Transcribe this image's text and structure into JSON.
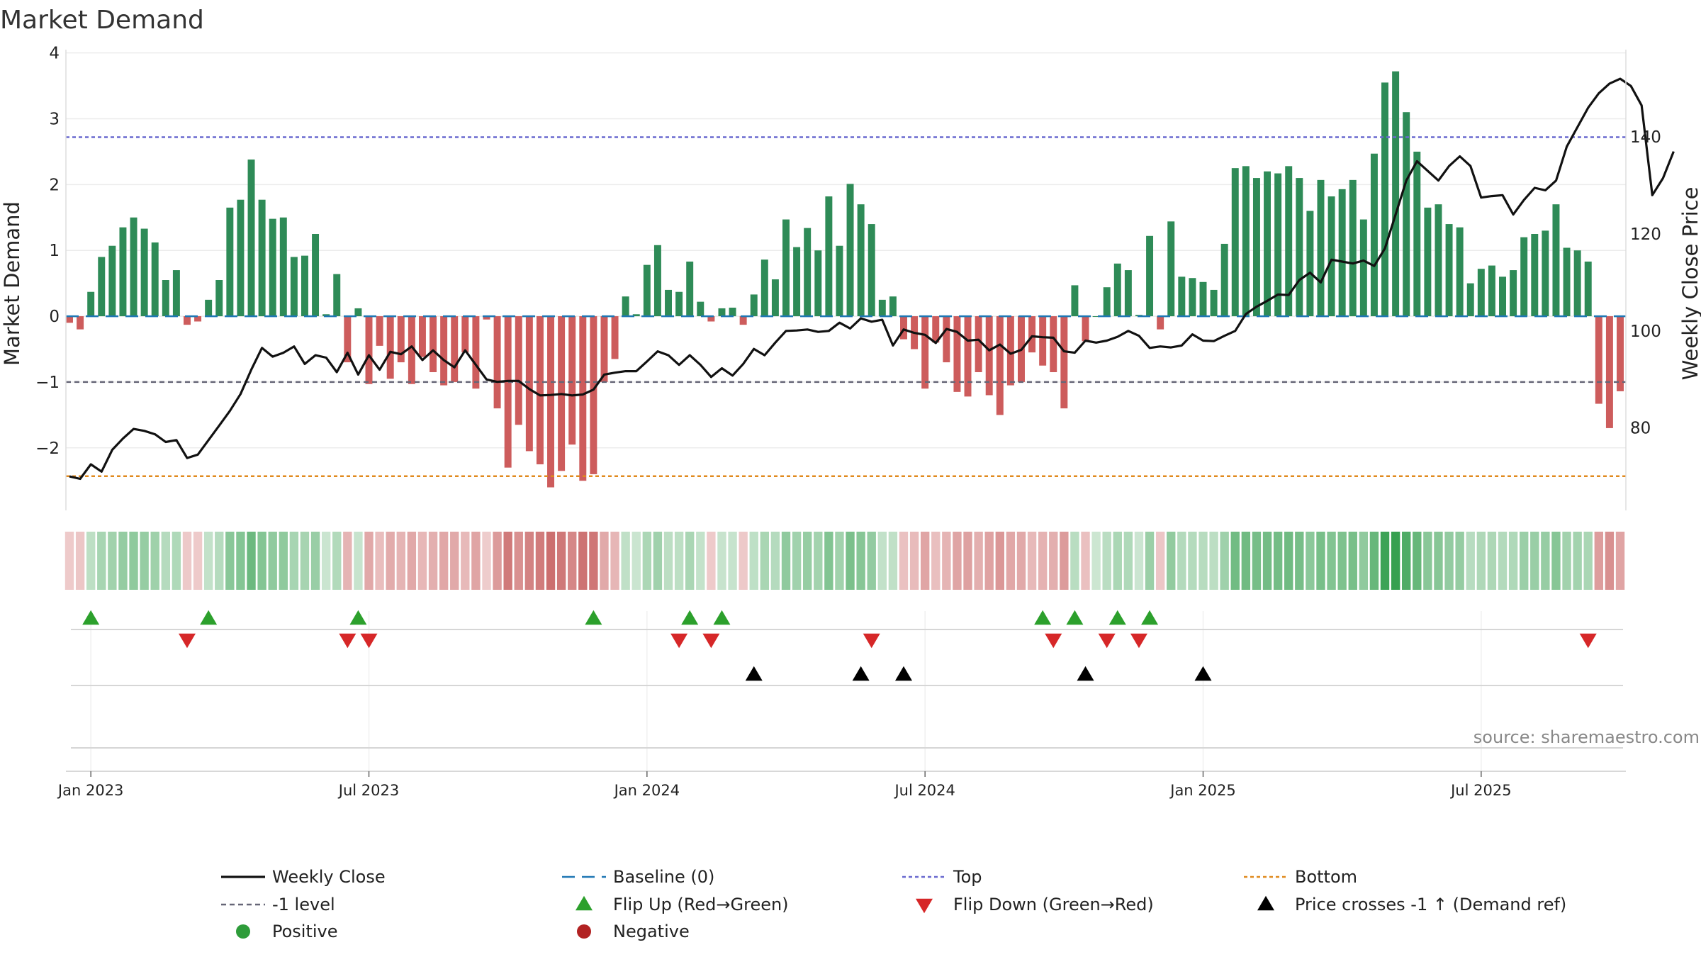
{
  "chart_data": {
    "type": "bar",
    "title": "Market Demand",
    "ylabel_left": "Market Demand",
    "ylabel_right": "Weekly Close Price",
    "ylim_left": [
      -2.95,
      4.05
    ],
    "yticks_left": [
      {
        "value": 4,
        "label": "4"
      },
      {
        "value": 3,
        "label": "3"
      },
      {
        "value": 2,
        "label": "2"
      },
      {
        "value": 1,
        "label": "1"
      },
      {
        "value": 0,
        "label": "0"
      },
      {
        "value": -1,
        "label": "−1"
      },
      {
        "value": -2,
        "label": "−2"
      }
    ],
    "ylim_right": [
      63,
      158
    ],
    "yticks_right": [
      {
        "value": 140,
        "label": "140"
      },
      {
        "value": 120,
        "label": "120"
      },
      {
        "value": 100,
        "label": "100"
      },
      {
        "value": 80,
        "label": "80"
      }
    ],
    "x_start_week": -2,
    "x_ticks": [
      {
        "week": 0,
        "label": "Jan 2023"
      },
      {
        "week": 26,
        "label": "Jul 2023"
      },
      {
        "week": 52,
        "label": "Jan 2024"
      },
      {
        "week": 78,
        "label": "Jul 2024"
      },
      {
        "week": 104,
        "label": "Jan 2025"
      },
      {
        "week": 130,
        "label": "Jul 2025"
      }
    ],
    "demand": [
      -0.1,
      -0.2,
      0.37,
      0.9,
      1.07,
      1.35,
      1.5,
      1.33,
      1.12,
      0.55,
      0.7,
      -0.13,
      -0.08,
      0.25,
      0.55,
      1.65,
      1.77,
      2.38,
      1.77,
      1.48,
      1.5,
      0.9,
      0.92,
      1.25,
      0.03,
      0.64,
      -0.7,
      0.12,
      -1.03,
      -0.45,
      -0.95,
      -0.7,
      -1.03,
      -0.62,
      -0.85,
      -1.05,
      -1.0,
      -0.55,
      -1.1,
      -0.05,
      -1.4,
      -2.3,
      -1.65,
      -2.05,
      -2.25,
      -2.6,
      -2.35,
      -1.95,
      -2.5,
      -2.4,
      -1.0,
      -0.65,
      0.3,
      0.03,
      0.78,
      1.08,
      0.4,
      0.37,
      0.83,
      0.22,
      -0.08,
      0.12,
      0.13,
      -0.13,
      0.33,
      0.86,
      0.56,
      1.47,
      1.05,
      1.34,
      1.0,
      1.82,
      1.07,
      2.01,
      1.7,
      1.4,
      0.25,
      0.3,
      -0.35,
      -0.5,
      -1.1,
      -0.4,
      -0.7,
      -1.15,
      -1.22,
      -0.85,
      -1.2,
      -1.5,
      -1.05,
      -1.0,
      -0.55,
      -0.75,
      -0.85,
      -1.4,
      0.47,
      -0.38,
      0.0,
      0.44,
      0.8,
      0.7,
      0.02,
      1.22,
      -0.2,
      1.44,
      0.6,
      0.58,
      0.52,
      0.4,
      1.1,
      2.25,
      2.28,
      2.1,
      2.2,
      2.17,
      2.28,
      2.1,
      1.6,
      2.07,
      1.82,
      1.93,
      2.07,
      1.47,
      2.47,
      3.55,
      3.72,
      3.1,
      2.5,
      1.65,
      1.7,
      1.4,
      1.35,
      0.5,
      0.72,
      0.77,
      0.6,
      0.7,
      1.2,
      1.25,
      1.3,
      1.7,
      1.04,
      1.0,
      0.83,
      -1.33,
      -1.7,
      -1.14
    ],
    "price": [
      70.0,
      69.5,
      72.5,
      71.0,
      75.5,
      77.8,
      79.8,
      79.4,
      78.7,
      77.1,
      77.5,
      73.8,
      74.5,
      77.5,
      80.5,
      83.5,
      87.0,
      92.0,
      96.5,
      94.7,
      95.5,
      96.8,
      93.2,
      95.0,
      94.5,
      91.5,
      95.5,
      91.0,
      95.0,
      92.0,
      95.7,
      95.2,
      96.8,
      94.0,
      96.0,
      94.0,
      92.5,
      96.0,
      93.0,
      90.0,
      89.5,
      89.7,
      89.7,
      88.0,
      86.7,
      86.8,
      87.0,
      86.7,
      86.9,
      87.9,
      91.0,
      91.4,
      91.7,
      91.7,
      93.7,
      95.8,
      95.0,
      93.0,
      95.0,
      93.0,
      90.5,
      92.3,
      90.8,
      93.2,
      96.3,
      95.0,
      97.6,
      100.0,
      100.1,
      100.3,
      99.8,
      100.0,
      101.7,
      100.5,
      102.6,
      101.9,
      102.3,
      97.0,
      100.3,
      99.6,
      99.2,
      97.5,
      100.4,
      99.8,
      98.0,
      98.2,
      96.0,
      97.2,
      95.3,
      96.1,
      98.9,
      98.7,
      98.6,
      95.8,
      95.5,
      98.0,
      97.6,
      98.0,
      98.8,
      100.0,
      99.0,
      96.5,
      96.8,
      96.6,
      97.0,
      99.3,
      98.0,
      97.9,
      99.0,
      100.0,
      103.5,
      105.0,
      106.2,
      107.5,
      107.4,
      110.5,
      112.0,
      110.0,
      114.7,
      114.3,
      113.9,
      114.5,
      113.4,
      117.0,
      124.0,
      131.0,
      135.0,
      133.0,
      131.0,
      134.0,
      136.0,
      134.0,
      127.5,
      127.8,
      128.0,
      124.0,
      127.0,
      129.5,
      129.0,
      131.0,
      138.0,
      142.0,
      146.0,
      149.0,
      151.0,
      152.0,
      150.5,
      146.5,
      128.0,
      131.5,
      137.0
    ],
    "baseline": 0,
    "top_level": 2.72,
    "bottom_level": -2.43,
    "minus_one_level": -1,
    "flip_up_weeks": [
      0,
      11,
      25,
      47,
      56,
      59,
      89,
      92,
      96,
      99
    ],
    "flip_down_weeks": [
      9,
      24,
      26,
      55,
      58,
      73,
      90,
      95,
      98,
      140
    ],
    "price_cross_weeks": [
      62,
      72,
      76,
      93,
      104
    ],
    "source": "source: sharemaestro.com",
    "legend": [
      {
        "key": "weekly_close",
        "label": "Weekly Close"
      },
      {
        "key": "baseline",
        "label": "Baseline (0)"
      },
      {
        "key": "top",
        "label": "Top"
      },
      {
        "key": "bottom",
        "label": "Bottom"
      },
      {
        "key": "minus_one",
        "label": "-1 level"
      },
      {
        "key": "flip_up",
        "label": "Flip Up (Red→Green)"
      },
      {
        "key": "flip_down",
        "label": "Flip Down (Green→Red)"
      },
      {
        "key": "price_cross",
        "label": "Price crosses -1 ↑ (Demand ref)"
      },
      {
        "key": "positive",
        "label": "Positive"
      },
      {
        "key": "negative",
        "label": "Negative"
      }
    ],
    "colors": {
      "positive": "#2e8b57",
      "negative": "#cd5c5c",
      "price": "#111111",
      "baseline": "#1f77b4",
      "top": "#6a6acf",
      "bottom": "#e08a1e",
      "minus_one": "#666677",
      "flip_up": "#2ca02c",
      "flip_down": "#d62728",
      "price_cross": "#000000",
      "legend_positive": "#2e9c3a",
      "legend_negative": "#b22222"
    }
  }
}
